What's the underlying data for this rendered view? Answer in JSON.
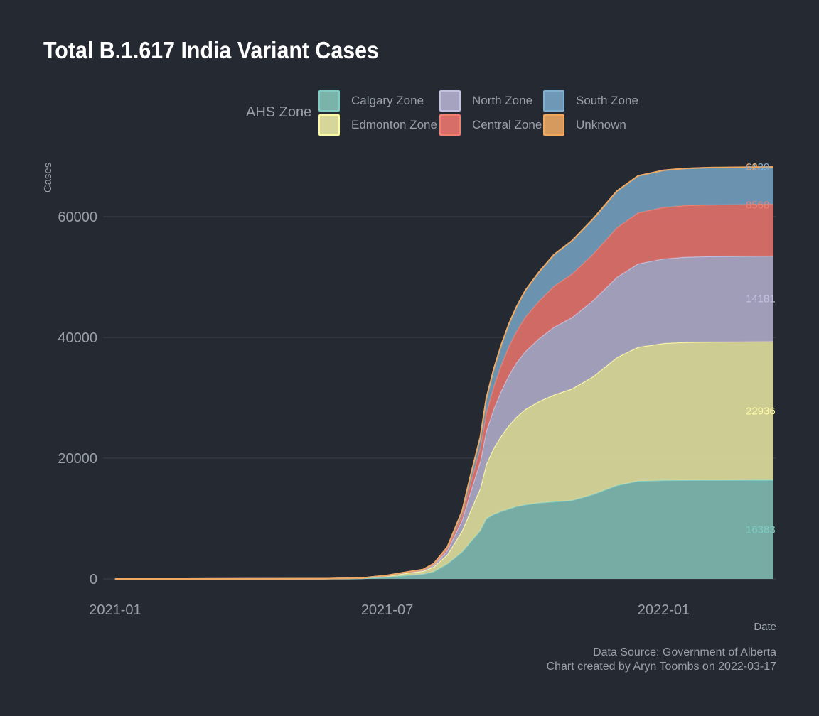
{
  "page": {
    "title": "Total B.1.617 India Variant Cases"
  },
  "legend": {
    "title": "AHS Zone",
    "items": [
      {
        "label": "Calgary Zone",
        "fill": "#7ab3aa",
        "stroke": "#80cbc4"
      },
      {
        "label": "Edmonton Zone",
        "fill": "#d6d699",
        "stroke": "#fff9a6"
      },
      {
        "label": "North Zone",
        "fill": "#a6a3c0",
        "stroke": "#c5c1e0"
      },
      {
        "label": "Central Zone",
        "fill": "#d86e68",
        "stroke": "#f08070"
      },
      {
        "label": "South Zone",
        "fill": "#6f98b6",
        "stroke": "#7fb0d0"
      },
      {
        "label": "Unknown",
        "fill": "#d69a5e",
        "stroke": "#f0a860"
      }
    ]
  },
  "caption": {
    "source": "Data Source: Government of Alberta",
    "credit": "Chart created by Aryn Toombs on 2022-03-17"
  },
  "chart_data": {
    "type": "area",
    "stacked": true,
    "title": "Total B.1.617 India Variant Cases",
    "xlabel": "Date",
    "ylabel": "Cases",
    "xlim": [
      "2020-12-24",
      "2022-03-17"
    ],
    "ylim": [
      0,
      70000
    ],
    "xticks": [
      "2021-01",
      "2021-07",
      "2022-01"
    ],
    "yticks": [
      0,
      20000,
      40000,
      60000
    ],
    "grid": "horizontal",
    "legend_position": "top",
    "x": [
      "2021-01-01",
      "2021-02-15",
      "2021-04-01",
      "2021-05-15",
      "2021-06-01",
      "2021-06-15",
      "2021-07-01",
      "2021-07-15",
      "2021-07-25",
      "2021-08-01",
      "2021-08-10",
      "2021-08-20",
      "2021-08-25",
      "2021-09-01",
      "2021-09-05",
      "2021-09-10",
      "2021-09-15",
      "2021-09-20",
      "2021-09-25",
      "2021-10-01",
      "2021-10-10",
      "2021-10-20",
      "2021-11-01",
      "2021-11-15",
      "2021-12-01",
      "2021-12-15",
      "2022-01-01",
      "2022-01-15",
      "2022-02-01",
      "2022-03-01",
      "2022-03-15"
    ],
    "series": [
      {
        "name": "Calgary Zone",
        "end_label": "16383",
        "values": [
          0,
          0,
          5,
          20,
          40,
          80,
          300,
          600,
          800,
          1200,
          2500,
          4500,
          6000,
          8000,
          10000,
          10700,
          11200,
          11600,
          12000,
          12300,
          12600,
          12800,
          13000,
          14000,
          15500,
          16200,
          16330,
          16350,
          16370,
          16380,
          16383
        ]
      },
      {
        "name": "Edmonton Zone",
        "end_label": "22936",
        "values": [
          0,
          0,
          3,
          10,
          30,
          60,
          200,
          400,
          500,
          800,
          1500,
          3500,
          5000,
          7000,
          9000,
          11000,
          12500,
          13800,
          14800,
          15800,
          16800,
          17700,
          18500,
          19500,
          21200,
          22200,
          22700,
          22850,
          22900,
          22930,
          22936
        ]
      },
      {
        "name": "North Zone",
        "end_label": "14181",
        "values": [
          0,
          0,
          1,
          4,
          10,
          20,
          50,
          100,
          150,
          300,
          700,
          1800,
          3000,
          4500,
          5500,
          6500,
          7500,
          8300,
          9000,
          9600,
          10400,
          11200,
          11800,
          12600,
          13300,
          13800,
          14000,
          14100,
          14150,
          14175,
          14181
        ]
      },
      {
        "name": "Central Zone",
        "end_label": "8568",
        "values": [
          0,
          0,
          1,
          2,
          5,
          10,
          20,
          40,
          60,
          120,
          300,
          800,
          1400,
          2200,
          3000,
          3700,
          4300,
          4800,
          5200,
          5700,
          6200,
          6800,
          7200,
          7700,
          8200,
          8450,
          8520,
          8550,
          8560,
          8566,
          8568
        ]
      },
      {
        "name": "South Zone",
        "end_label": "6139",
        "values": [
          0,
          0,
          0,
          1,
          3,
          5,
          15,
          30,
          50,
          100,
          250,
          700,
          1200,
          1800,
          2400,
          2900,
          3300,
          3700,
          4000,
          4400,
          4800,
          5200,
          5500,
          5800,
          6050,
          6100,
          6120,
          6130,
          6135,
          6138,
          6139
        ]
      },
      {
        "name": "Unknown",
        "end_label": "12",
        "values": [
          0,
          0,
          0,
          0,
          0,
          0,
          1,
          2,
          3,
          4,
          5,
          6,
          7,
          8,
          9,
          9,
          10,
          10,
          10,
          11,
          11,
          11,
          11,
          12,
          12,
          12,
          12,
          12,
          12,
          12,
          12
        ]
      }
    ]
  }
}
